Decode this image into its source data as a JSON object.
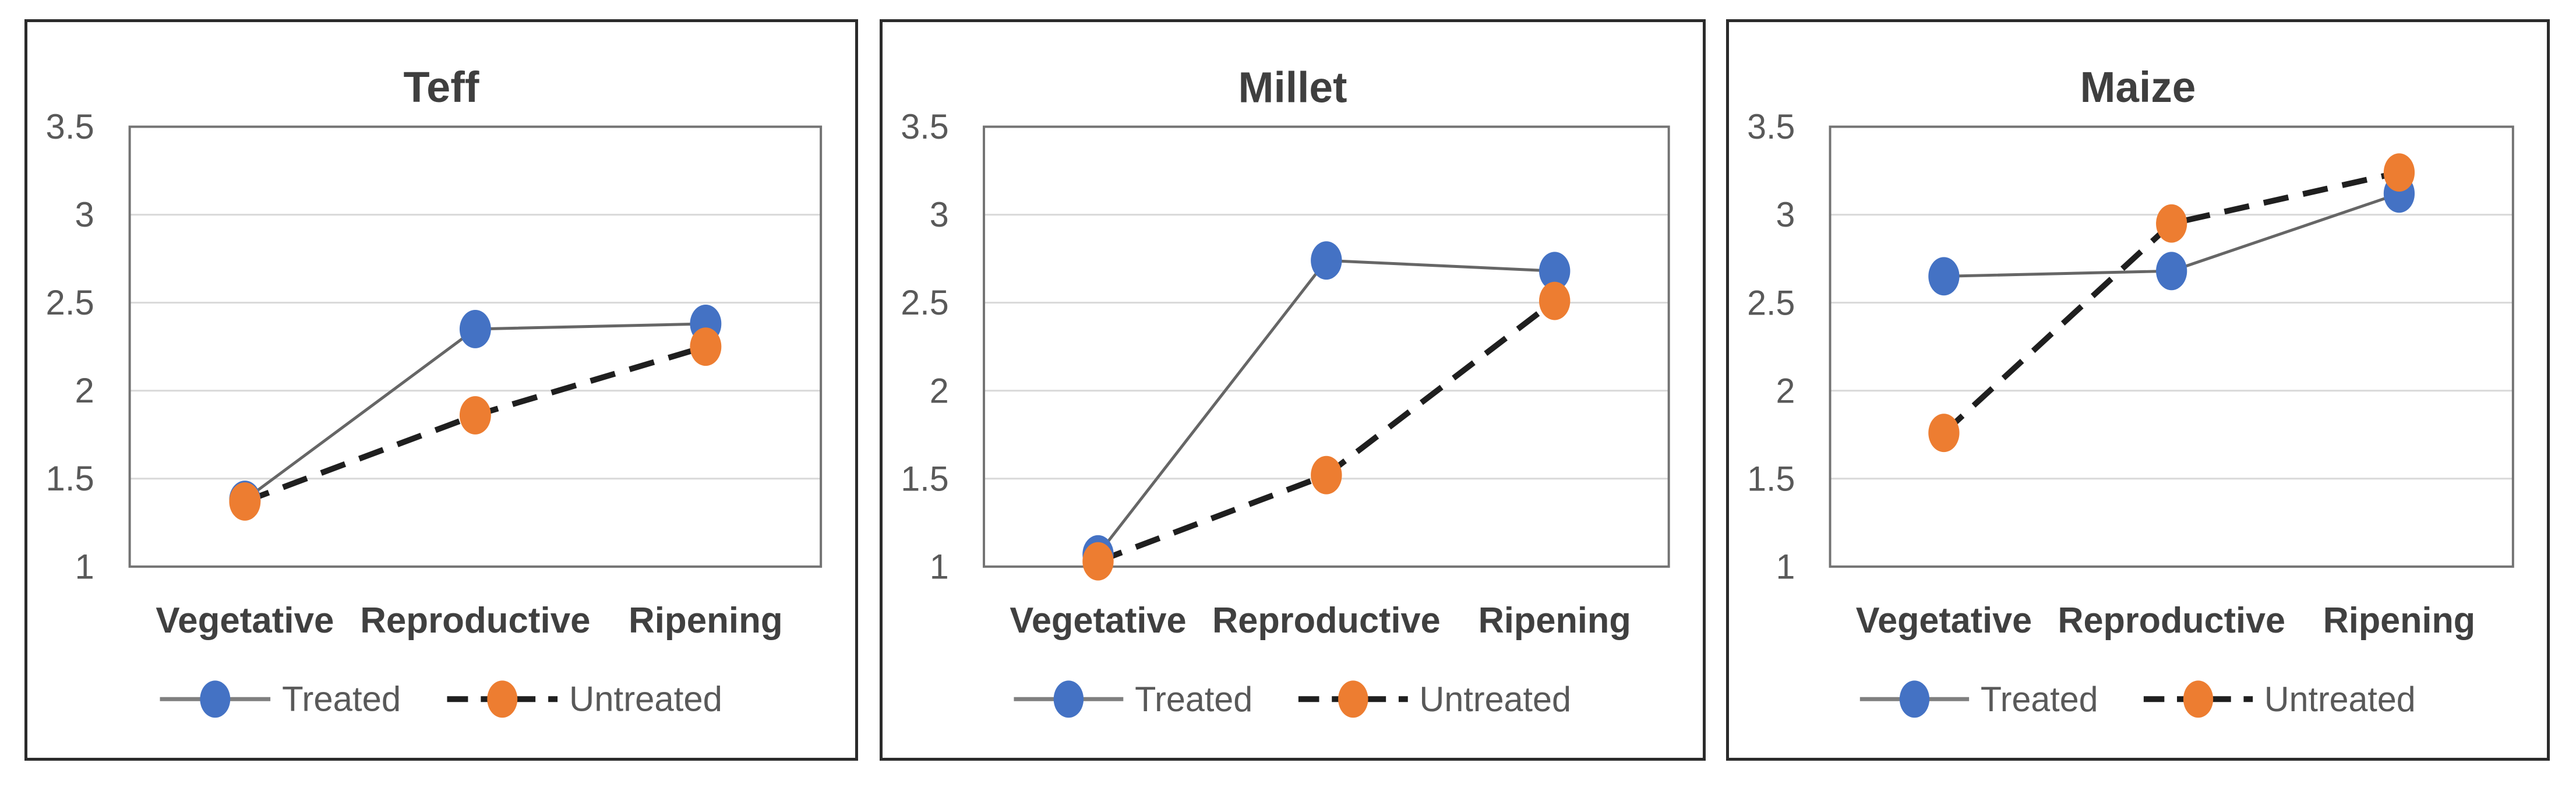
{
  "page": {
    "background": "#ffffff"
  },
  "colors": {
    "treated_marker": "#4472C4",
    "untreated_marker": "#ED7D31",
    "treated_line": "#666666",
    "untreated_line": "#1f1f1f",
    "legend_treated_line": "#7f7f7f",
    "gridline": "#D9D9D9",
    "plot_border": "#737373",
    "axis_text": "#595959",
    "category_text": "#404040",
    "title_text": "#3f3f3f",
    "legend_text": "#595959",
    "panel_border": "#2b2b2b"
  },
  "chart_data": [
    {
      "type": "line",
      "title": "Teff",
      "categories": [
        "Vegetative",
        "Reproductive",
        "Ripening"
      ],
      "series": [
        {
          "name": "Treated",
          "values": [
            1.38,
            2.35,
            2.38
          ],
          "marker_color": "#4472C4",
          "line_color": "#666666",
          "line_style": "solid"
        },
        {
          "name": "Untreated",
          "values": [
            1.37,
            1.86,
            2.25
          ],
          "marker_color": "#ED7D31",
          "line_color": "#1f1f1f",
          "line_style": "dashed"
        }
      ],
      "ylim": [
        1,
        3.5
      ],
      "yticks": [
        1,
        1.5,
        2,
        2.5,
        3,
        3.5
      ],
      "ytick_labels": [
        "1",
        "1.5",
        "2",
        "2.5",
        "3",
        "3.5"
      ],
      "grid": true,
      "legend_position": "bottom"
    },
    {
      "type": "line",
      "title": "Millet",
      "categories": [
        "Vegetative",
        "Reproductive",
        "Ripening"
      ],
      "series": [
        {
          "name": "Treated",
          "values": [
            1.07,
            2.74,
            2.68
          ],
          "marker_color": "#4472C4",
          "line_color": "#666666",
          "line_style": "solid"
        },
        {
          "name": "Untreated",
          "values": [
            1.03,
            1.52,
            2.51
          ],
          "marker_color": "#ED7D31",
          "line_color": "#1f1f1f",
          "line_style": "dashed"
        }
      ],
      "ylim": [
        1,
        3.5
      ],
      "yticks": [
        1,
        1.5,
        2,
        2.5,
        3,
        3.5
      ],
      "ytick_labels": [
        "1",
        "1.5",
        "2",
        "2.5",
        "3",
        "3.5"
      ],
      "grid": true,
      "legend_position": "bottom"
    },
    {
      "type": "line",
      "title": "Maize",
      "categories": [
        "Vegetative",
        "Reproductive",
        "Ripening"
      ],
      "series": [
        {
          "name": "Treated",
          "values": [
            2.65,
            2.68,
            3.12
          ],
          "marker_color": "#4472C4",
          "line_color": "#666666",
          "line_style": "solid"
        },
        {
          "name": "Untreated",
          "values": [
            1.76,
            2.95,
            3.24
          ],
          "marker_color": "#ED7D31",
          "line_color": "#1f1f1f",
          "line_style": "dashed"
        }
      ],
      "ylim": [
        1,
        3.5
      ],
      "yticks": [
        1,
        1.5,
        2,
        2.5,
        3,
        3.5
      ],
      "ytick_labels": [
        "1",
        "1.5",
        "2",
        "2.5",
        "3",
        "3.5"
      ],
      "grid": true,
      "legend_position": "bottom"
    }
  ]
}
